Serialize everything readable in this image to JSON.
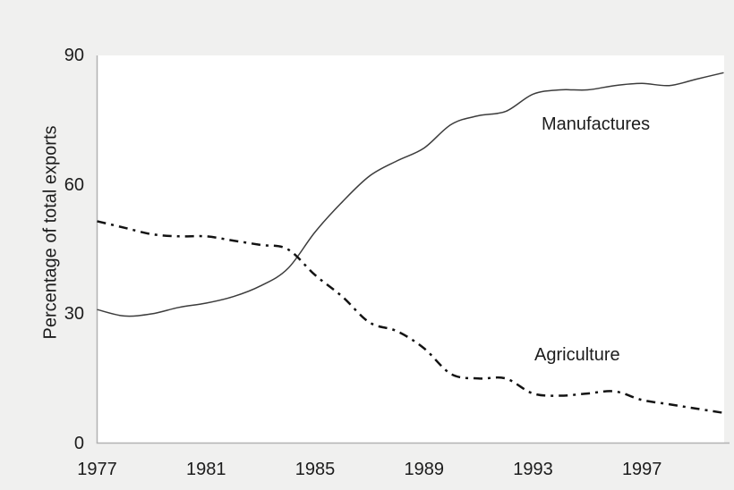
{
  "figure": {
    "background": "#f0f0ef",
    "plot_background": "#ffffff",
    "axis_color": "#b2b2b2",
    "text_color": "#1c1c1c"
  },
  "chart_data": {
    "type": "line",
    "title": "",
    "xlabel": "",
    "ylabel": "Percentage of total exports",
    "xlim": [
      1977,
      2000
    ],
    "ylim": [
      0,
      90
    ],
    "x_ticks": [
      1977,
      1981,
      1985,
      1989,
      1993,
      1997
    ],
    "y_ticks": [
      0,
      30,
      60,
      90
    ],
    "grid": false,
    "legend_position": "inline-labels",
    "x": [
      1977,
      1978,
      1979,
      1980,
      1981,
      1982,
      1983,
      1984,
      1985,
      1986,
      1987,
      1988,
      1989,
      1990,
      1991,
      1992,
      1993,
      1994,
      1995,
      1996,
      1997,
      1998,
      1999,
      2000
    ],
    "series": [
      {
        "name": "Manufactures",
        "line_style": "solid",
        "color": "#3c3c3c",
        "stroke_width": 1.5,
        "values": [
          31,
          29.5,
          30,
          31.5,
          32.5,
          34,
          36.5,
          40.5,
          49,
          56,
          62,
          65.5,
          68.5,
          74,
          76,
          77,
          81,
          82,
          82,
          83,
          83.5,
          83,
          84.5,
          86
        ]
      },
      {
        "name": "Agriculture",
        "line_style": "dash-dot",
        "color": "#131313",
        "stroke_width": 2.5,
        "values": [
          51.5,
          50,
          48.5,
          48,
          48,
          47,
          46,
          45,
          39,
          34,
          28,
          26,
          22,
          16,
          15,
          15,
          11.5,
          11,
          11.5,
          12,
          10,
          9,
          8,
          7
        ]
      }
    ]
  }
}
